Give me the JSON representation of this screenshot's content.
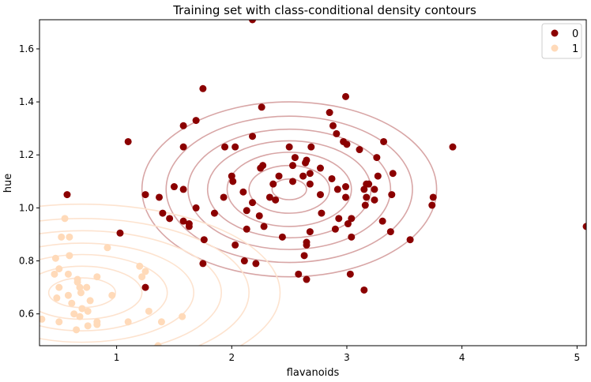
{
  "chart_data": {
    "type": "scatter",
    "title": "Training set with class-conditional density contours",
    "xlabel": "flavanoids",
    "ylabel": "hue",
    "xlim": [
      0.33,
      5.08
    ],
    "ylim": [
      0.48,
      1.71
    ],
    "xticks": [
      1,
      2,
      3,
      4,
      5
    ],
    "yticks": [
      0.6,
      0.8,
      1.0,
      1.2,
      1.4,
      1.6
    ],
    "ytick_labels": [
      "0.6",
      "0.8",
      "1.0",
      "1.2",
      "1.4",
      "1.6"
    ],
    "legend": {
      "placement": "top-right",
      "entries": [
        "0",
        "1"
      ]
    },
    "colors": {
      "0": "#8b0000",
      "1": "#ffdab9",
      "contour0": "#d8a6a6",
      "contour1": "#fde3cf"
    },
    "contours": [
      {
        "class": "0",
        "center": [
          2.5,
          1.07
        ],
        "rx": [
          1.28,
          1.07,
          0.88,
          0.71,
          0.54,
          0.35,
          0.15
        ],
        "ry": [
          0.33,
          0.276,
          0.227,
          0.183,
          0.14,
          0.09,
          0.039
        ]
      },
      {
        "class": "1",
        "center": [
          0.7,
          0.68
        ],
        "rx": [
          0.29,
          0.52,
          0.74,
          0.97,
          1.21,
          1.45,
          1.72
        ],
        "ry": [
          0.056,
          0.1,
          0.144,
          0.187,
          0.234,
          0.28,
          0.334
        ]
      }
    ],
    "series": [
      {
        "name": "0",
        "points": [
          [
            2.18,
            1.71
          ],
          [
            1.75,
            1.45
          ],
          [
            2.99,
            1.42
          ],
          [
            2.26,
            1.38
          ],
          [
            2.85,
            1.36
          ],
          [
            1.69,
            1.33
          ],
          [
            1.58,
            1.31
          ],
          [
            2.88,
            1.31
          ],
          [
            2.18,
            1.27
          ],
          [
            2.91,
            1.28
          ],
          [
            3.32,
            1.25
          ],
          [
            1.1,
            1.25
          ],
          [
            2.97,
            1.25
          ],
          [
            3.0,
            1.24
          ],
          [
            1.58,
            1.23
          ],
          [
            1.94,
            1.23
          ],
          [
            2.03,
            1.23
          ],
          [
            2.5,
            1.23
          ],
          [
            2.69,
            1.23
          ],
          [
            3.11,
            1.22
          ],
          [
            3.92,
            1.23
          ],
          [
            3.26,
            1.19
          ],
          [
            2.55,
            1.19
          ],
          [
            2.65,
            1.18
          ],
          [
            2.64,
            1.17
          ],
          [
            2.27,
            1.16
          ],
          [
            2.25,
            1.15
          ],
          [
            2.53,
            1.16
          ],
          [
            2.77,
            1.15
          ],
          [
            2.0,
            1.12
          ],
          [
            2.41,
            1.12
          ],
          [
            2.62,
            1.12
          ],
          [
            2.68,
            1.13
          ],
          [
            3.27,
            1.12
          ],
          [
            3.4,
            1.13
          ],
          [
            2.01,
            1.1
          ],
          [
            2.53,
            1.1
          ],
          [
            2.68,
            1.09
          ],
          [
            2.87,
            1.11
          ],
          [
            1.25,
            1.05
          ],
          [
            1.37,
            1.04
          ],
          [
            0.57,
            1.05
          ],
          [
            1.93,
            1.04
          ],
          [
            2.33,
            1.04
          ],
          [
            2.38,
            1.03
          ],
          [
            2.36,
            1.09
          ],
          [
            2.92,
            1.07
          ],
          [
            3.17,
            1.09
          ],
          [
            3.19,
            1.09
          ],
          [
            3.15,
            1.07
          ],
          [
            3.24,
            1.07
          ],
          [
            1.5,
            1.08
          ],
          [
            1.58,
            1.07
          ],
          [
            2.1,
            1.06
          ],
          [
            2.77,
            1.05
          ],
          [
            2.99,
            1.08
          ],
          [
            3.39,
            1.05
          ],
          [
            3.74,
            1.01
          ],
          [
            3.75,
            1.04
          ],
          [
            3.16,
            1.01
          ],
          [
            3.24,
            1.03
          ],
          [
            2.99,
            1.04
          ],
          [
            1.4,
            0.98
          ],
          [
            1.46,
            0.96
          ],
          [
            1.58,
            0.95
          ],
          [
            1.63,
            0.94
          ],
          [
            1.63,
            0.93
          ],
          [
            1.85,
            0.98
          ],
          [
            1.69,
            1.0
          ],
          [
            2.13,
            0.99
          ],
          [
            2.18,
            1.02
          ],
          [
            2.24,
            0.97
          ],
          [
            2.78,
            0.98
          ],
          [
            2.93,
            0.96
          ],
          [
            3.04,
            0.96
          ],
          [
            3.17,
            1.04
          ],
          [
            1.03,
            0.905
          ],
          [
            1.76,
            0.88
          ],
          [
            2.13,
            0.92
          ],
          [
            2.28,
            0.93
          ],
          [
            2.44,
            0.89
          ],
          [
            2.65,
            0.87
          ],
          [
            2.65,
            0.86
          ],
          [
            2.68,
            0.91
          ],
          [
            2.9,
            0.92
          ],
          [
            3.01,
            0.94
          ],
          [
            3.04,
            0.89
          ],
          [
            3.31,
            0.95
          ],
          [
            3.38,
            0.91
          ],
          [
            3.55,
            0.88
          ],
          [
            2.03,
            0.86
          ],
          [
            1.75,
            0.79
          ],
          [
            2.11,
            0.8
          ],
          [
            2.21,
            0.79
          ],
          [
            2.63,
            0.82
          ],
          [
            2.58,
            0.75
          ],
          [
            2.65,
            0.73
          ],
          [
            3.03,
            0.75
          ],
          [
            1.25,
            0.7
          ],
          [
            3.15,
            0.69
          ],
          [
            5.08,
            0.93
          ]
        ]
      },
      {
        "name": "1",
        "points": [
          [
            0.55,
            0.96
          ],
          [
            0.52,
            0.89
          ],
          [
            0.59,
            0.89
          ],
          [
            0.59,
            0.82
          ],
          [
            0.47,
            0.81
          ],
          [
            0.92,
            0.85
          ],
          [
            0.5,
            0.77
          ],
          [
            0.46,
            0.75
          ],
          [
            0.58,
            0.75
          ],
          [
            0.66,
            0.73
          ],
          [
            0.66,
            0.72
          ],
          [
            0.83,
            0.74
          ],
          [
            0.68,
            0.7
          ],
          [
            0.5,
            0.7
          ],
          [
            0.74,
            0.7
          ],
          [
            0.69,
            0.68
          ],
          [
            0.58,
            0.67
          ],
          [
            0.96,
            0.67
          ],
          [
            0.48,
            0.66
          ],
          [
            0.77,
            0.65
          ],
          [
            0.61,
            0.64
          ],
          [
            0.7,
            0.62
          ],
          [
            0.75,
            0.61
          ],
          [
            0.63,
            0.6
          ],
          [
            0.68,
            0.59
          ],
          [
            0.35,
            0.58
          ],
          [
            0.5,
            0.57
          ],
          [
            0.83,
            0.57
          ],
          [
            0.83,
            0.56
          ],
          [
            0.75,
            0.555
          ],
          [
            0.65,
            0.54
          ],
          [
            1.1,
            0.57
          ],
          [
            1.39,
            0.57
          ],
          [
            1.28,
            0.61
          ],
          [
            1.2,
            0.78
          ],
          [
            1.25,
            0.76
          ],
          [
            1.22,
            0.74
          ],
          [
            1.57,
            0.59
          ],
          [
            1.36,
            0.48
          ]
        ]
      }
    ]
  }
}
